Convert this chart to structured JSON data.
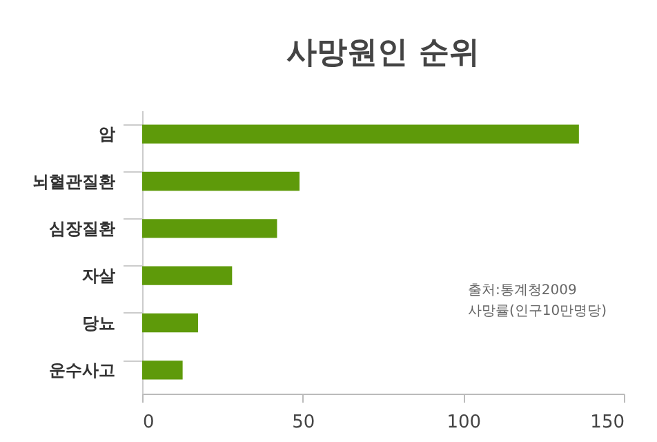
{
  "chart_data": {
    "type": "bar",
    "title": "사망원인 순위",
    "orientation": "horizontal",
    "categories": [
      "암",
      "뇌혈관질환",
      "심장질환",
      "자살",
      "당뇨",
      "운수사고"
    ],
    "values": [
      136,
      49,
      42,
      28,
      17.4,
      12.6
    ],
    "color": "#5e9a0a",
    "xlim": [
      0,
      150
    ],
    "xticks": [
      0,
      50,
      100,
      150
    ],
    "grid": false,
    "annotations": [
      "출처:통계청2009",
      "사망률(인구10만명당)"
    ]
  }
}
